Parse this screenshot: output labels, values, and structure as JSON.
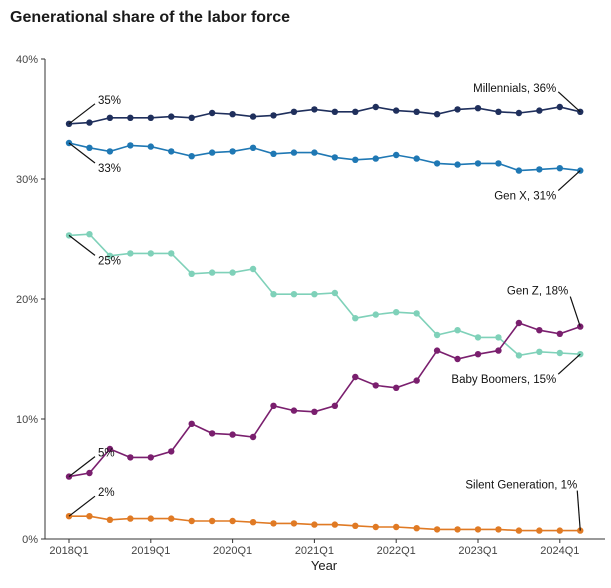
{
  "chart_data": {
    "type": "line",
    "title": "Generational share of the labor force",
    "xlabel": "Year",
    "ylabel": "",
    "ylim": [
      0,
      40
    ],
    "y_ticks": [
      0,
      10,
      20,
      30,
      40
    ],
    "y_tick_labels": [
      "0%",
      "10%",
      "20%",
      "30%",
      "40%"
    ],
    "x_tick_labels": [
      "2018Q1",
      "2019Q1",
      "2020Q1",
      "2021Q1",
      "2022Q1",
      "2023Q1",
      "2024Q1"
    ],
    "x_tick_index": [
      0,
      4,
      8,
      12,
      16,
      20,
      24
    ],
    "n_quarters": 26,
    "grid": false,
    "legend": "none (direct labels)",
    "series": [
      {
        "key": "millennials",
        "color": "#1f2f5c",
        "values": [
          34.6,
          34.7,
          35.1,
          35.1,
          35.1,
          35.2,
          35.1,
          35.5,
          35.4,
          35.2,
          35.3,
          35.6,
          35.8,
          35.6,
          35.6,
          36.0,
          35.7,
          35.6,
          35.4,
          35.8,
          35.9,
          35.6,
          35.5,
          35.7,
          36.0,
          35.6
        ]
      },
      {
        "key": "gen_x",
        "color": "#1f78b4",
        "values": [
          33.0,
          32.6,
          32.3,
          32.8,
          32.7,
          32.3,
          31.9,
          32.2,
          32.3,
          32.6,
          32.1,
          32.2,
          32.2,
          31.8,
          31.6,
          31.7,
          32.0,
          31.7,
          31.3,
          31.2,
          31.3,
          31.3,
          30.7,
          30.8,
          30.9,
          30.7
        ]
      },
      {
        "key": "baby_boomers",
        "color": "#7fd1b9",
        "values": [
          25.3,
          25.4,
          23.6,
          23.8,
          23.8,
          23.8,
          22.1,
          22.2,
          22.2,
          22.5,
          20.4,
          20.4,
          20.4,
          20.5,
          18.4,
          18.7,
          18.9,
          18.8,
          17.0,
          17.4,
          16.8,
          16.8,
          15.3,
          15.6,
          15.5,
          15.4
        ]
      },
      {
        "key": "gen_z",
        "color": "#7a1f6e",
        "values": [
          5.2,
          5.5,
          7.5,
          6.8,
          6.8,
          7.3,
          9.6,
          8.8,
          8.7,
          8.5,
          11.1,
          10.7,
          10.6,
          11.1,
          13.5,
          12.8,
          12.6,
          13.2,
          15.7,
          15.0,
          15.4,
          15.7,
          18.0,
          17.4,
          17.1,
          17.7
        ]
      },
      {
        "key": "silent_generation",
        "color": "#e07a24",
        "values": [
          1.9,
          1.9,
          1.6,
          1.7,
          1.7,
          1.7,
          1.5,
          1.5,
          1.5,
          1.4,
          1.3,
          1.3,
          1.2,
          1.2,
          1.1,
          1.0,
          1.0,
          0.9,
          0.8,
          0.8,
          0.8,
          0.8,
          0.7,
          0.7,
          0.7,
          0.7
        ]
      }
    ],
    "annotations": [
      {
        "text": "35%",
        "series": 0,
        "end": "start",
        "pos": "above"
      },
      {
        "text": "33%",
        "series": 1,
        "end": "start",
        "pos": "below"
      },
      {
        "text": "25%",
        "series": 2,
        "end": "start",
        "pos": "below"
      },
      {
        "text": "5%",
        "series": 3,
        "end": "start",
        "pos": "above"
      },
      {
        "text": "2%",
        "series": 4,
        "end": "start",
        "pos": "above"
      },
      {
        "text": "Millennials, 36%",
        "series": 0,
        "end": "end",
        "pos": "above"
      },
      {
        "text": "Gen X, 31%",
        "series": 1,
        "end": "end",
        "pos": "below"
      },
      {
        "text": "Gen Z, 18%",
        "series": 3,
        "end": "end",
        "pos": "above"
      },
      {
        "text": "Baby Boomers, 15%",
        "series": 2,
        "end": "end",
        "pos": "below"
      },
      {
        "text": "Silent Generation, 1%",
        "series": 4,
        "end": "end",
        "pos": "above"
      }
    ]
  }
}
